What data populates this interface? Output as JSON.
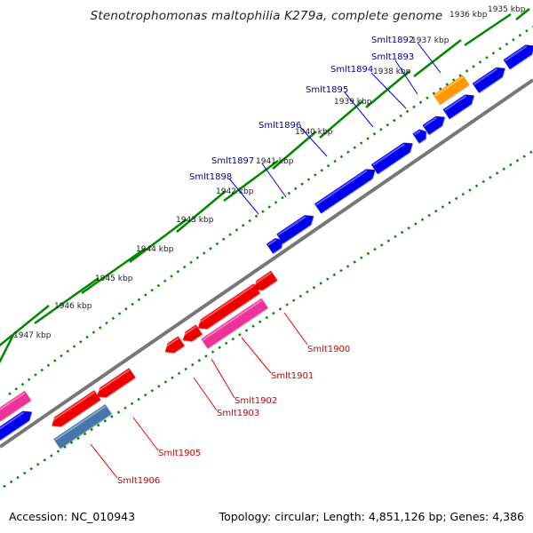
{
  "title": "Stenotrophomonas maltophilia K279a, complete genome",
  "accession_label": "Accession: NC_010943",
  "summary_label": "Topology: circular; Length: 4,851,126 bp; Genes: 4,386",
  "colors": {
    "forward_gene": "#0000ee",
    "reverse_gene": "#ee0000",
    "pink_gene": "#ee3399",
    "orange_gene": "#ff9900",
    "steel_gene": "#4477aa",
    "backbone": "#777777",
    "ticks": "#008800",
    "forward_label": "#000099",
    "reverse_label": "#cc0000"
  },
  "ticks": [
    {
      "label": "1935 kbp"
    },
    {
      "label": "1936 kbp"
    },
    {
      "label": "1937 kbp"
    },
    {
      "label": "1938 kbp"
    },
    {
      "label": "1939 kbp"
    },
    {
      "label": "1940 kbp"
    },
    {
      "label": "1941 kbp"
    },
    {
      "label": "1942 kbp"
    },
    {
      "label": "1943 kbp"
    },
    {
      "label": "1944 kbp"
    },
    {
      "label": "1945 kbp"
    },
    {
      "label": "1946 kbp"
    },
    {
      "label": "1947 kbp"
    }
  ],
  "forward_labels": [
    {
      "name": "Smlt1892"
    },
    {
      "name": "Smlt1893"
    },
    {
      "name": "Smlt1894"
    },
    {
      "name": "Smlt1895"
    },
    {
      "name": "Smlt1896"
    },
    {
      "name": "Smlt1897"
    },
    {
      "name": "Smlt1898"
    }
  ],
  "reverse_labels": [
    {
      "name": "Smlt1900"
    },
    {
      "name": "Smlt1901"
    },
    {
      "name": "Smlt1902"
    },
    {
      "name": "Smlt1903"
    },
    {
      "name": "Smlt1905"
    },
    {
      "name": "Smlt1906"
    }
  ]
}
